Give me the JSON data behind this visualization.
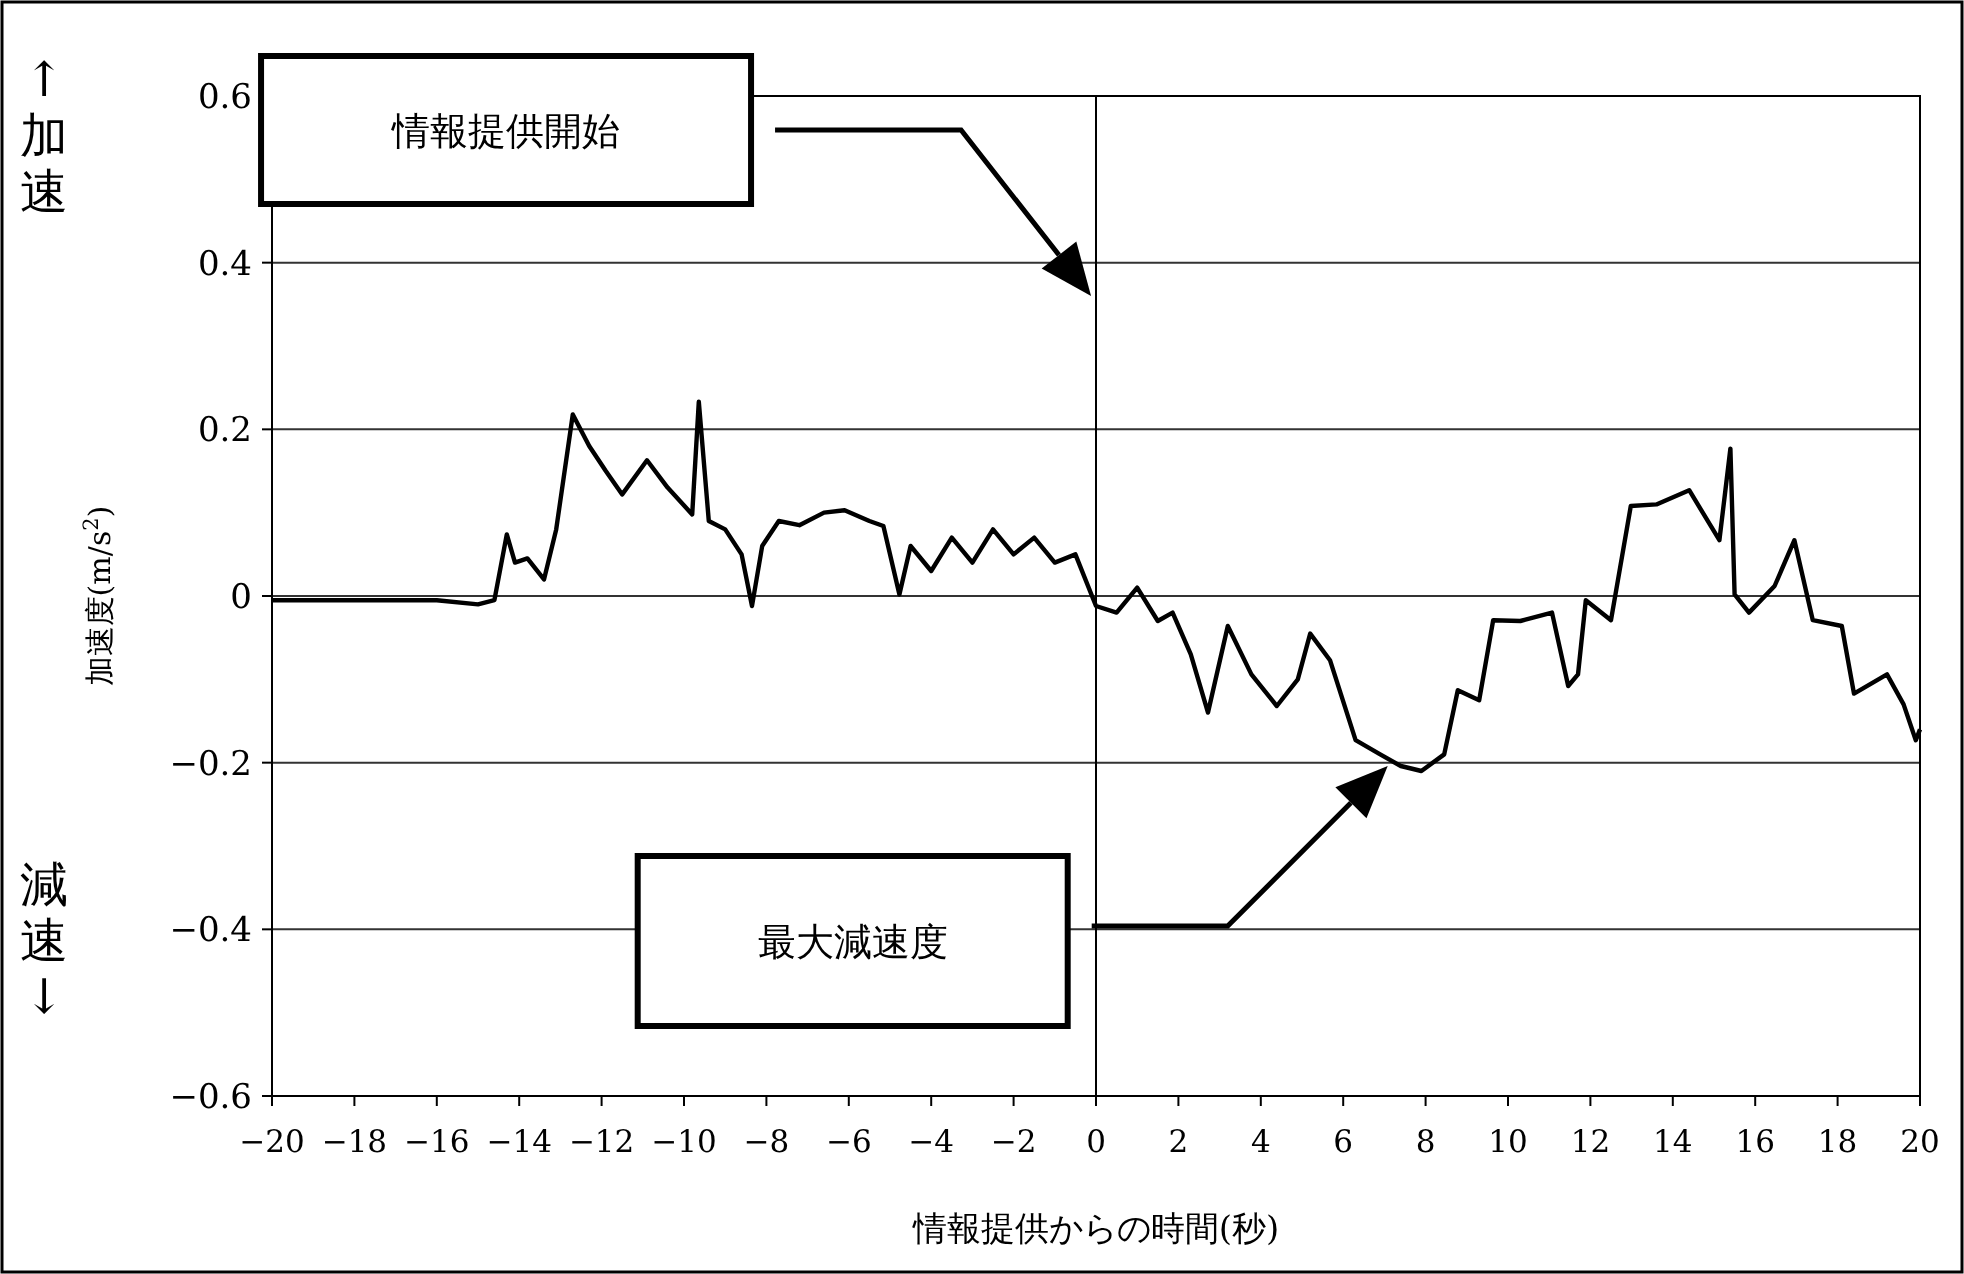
{
  "chart_data": {
    "type": "line",
    "xlabel": "情報提供からの時間(秒)",
    "ylabel": "加速度(m/s$^{2}$)",
    "xlim": [
      -20,
      20
    ],
    "xticks": [
      -20,
      -18,
      -16,
      -14,
      -12,
      -10,
      -8,
      -6,
      -4,
      -2,
      0,
      2,
      4,
      6,
      8,
      10,
      12,
      14,
      16,
      18,
      20
    ],
    "ylim": [
      -0.6,
      0.6
    ],
    "yticks": [
      -0.6,
      -0.4,
      -0.2,
      0,
      0.2,
      0.4,
      0.6
    ],
    "grid": "y",
    "ref_lines": [
      {
        "axis": "x",
        "value": 0,
        "color": "#000000"
      }
    ],
    "annotations": [
      "情報提供開始",
      "最大減速度",
      "↑加速",
      "減速↓"
    ],
    "series": [
      {
        "color": "#000000",
        "x": [
          -20,
          -18,
          -16,
          -15,
          -14.6,
          -14.3,
          -14.1,
          -13.8,
          -13.4,
          -13.1,
          -12.7,
          -12.3,
          -11.9,
          -11.5,
          -10.9,
          -10.4,
          -9.8,
          -9.64,
          -9.4,
          -9,
          -8.6,
          -8.35,
          -8.1,
          -7.7,
          -7.2,
          -6.6,
          -6.1,
          -5.5,
          -5.16,
          -4.77,
          -4.5,
          -4,
          -3.5,
          -3,
          -2.5,
          -2,
          -1.5,
          -1,
          -0.5,
          0,
          0.5,
          1,
          1.5,
          1.86,
          2.3,
          2.72,
          3.2,
          3.77,
          4.39,
          4.9,
          5.2,
          5.68,
          6.3,
          6.9,
          7.4,
          7.9,
          8.45,
          8.78,
          9.3,
          9.64,
          10.3,
          11.07,
          11.46,
          11.7,
          11.89,
          12.5,
          12.98,
          13.6,
          14.4,
          15.13,
          15.4,
          15.5,
          15.85,
          16.47,
          16.95,
          17.4,
          18.1,
          18.4,
          19.2,
          19.6,
          19.9,
          20
        ],
        "values": [
          -0.005,
          -0.005,
          -0.005,
          -0.01,
          -0.005,
          0.074,
          0.04,
          0.045,
          0.02,
          0.08,
          0.218,
          0.18,
          0.15,
          0.122,
          0.163,
          0.13,
          0.098,
          0.233,
          0.09,
          0.08,
          0.05,
          -0.012,
          0.06,
          0.09,
          0.085,
          0.1,
          0.103,
          0.09,
          0.084,
          0.002,
          0.06,
          0.03,
          0.07,
          0.04,
          0.08,
          0.05,
          0.07,
          0.04,
          0.05,
          -0.012,
          -0.02,
          0.01,
          -0.03,
          -0.02,
          -0.07,
          -0.14,
          -0.036,
          -0.094,
          -0.132,
          -0.1,
          -0.045,
          -0.077,
          -0.173,
          -0.19,
          -0.204,
          -0.21,
          -0.19,
          -0.113,
          -0.125,
          -0.029,
          -0.03,
          -0.02,
          -0.108,
          -0.094,
          -0.005,
          -0.029,
          0.108,
          0.11,
          0.127,
          0.067,
          0.177,
          0.002,
          -0.02,
          0.012,
          0.067,
          -0.029,
          -0.036,
          -0.117,
          -0.094,
          -0.13,
          -0.173,
          -0.16
        ]
      }
    ]
  }
}
